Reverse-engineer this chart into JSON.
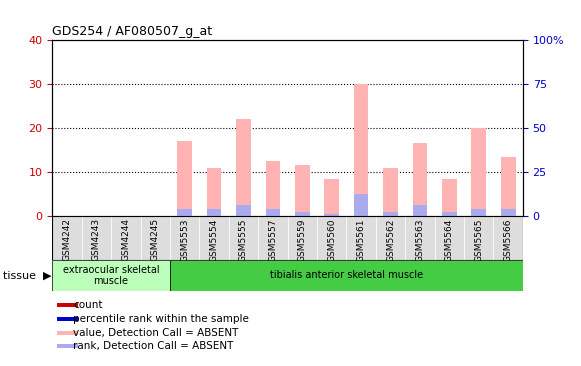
{
  "title": "GDS254 / AF080507_g_at",
  "samples": [
    "GSM4242",
    "GSM4243",
    "GSM4244",
    "GSM4245",
    "GSM5553",
    "GSM5554",
    "GSM5555",
    "GSM5557",
    "GSM5559",
    "GSM5560",
    "GSM5561",
    "GSM5562",
    "GSM5563",
    "GSM5564",
    "GSM5565",
    "GSM5566"
  ],
  "value_absent": [
    0,
    0,
    0,
    0,
    17.0,
    11.0,
    22.0,
    12.5,
    11.5,
    8.5,
    30.0,
    11.0,
    16.5,
    8.5,
    20.0,
    13.5
  ],
  "rank_absent": [
    0,
    0,
    0,
    0,
    1.5,
    1.5,
    2.5,
    1.5,
    1.0,
    0.5,
    5.0,
    1.0,
    2.5,
    1.0,
    1.5,
    1.5
  ],
  "ylim_left": [
    0,
    40
  ],
  "ylim_right": [
    0,
    100
  ],
  "yticks_left": [
    0,
    10,
    20,
    30,
    40
  ],
  "yticks_right": [
    0,
    25,
    50,
    75,
    100
  ],
  "tissue_groups": [
    {
      "label": "extraocular skeletal\nmuscle",
      "start": 0,
      "end": 4
    },
    {
      "label": "tibialis anterior skeletal muscle",
      "start": 4,
      "end": 16
    }
  ],
  "tissue_colors": [
    "#bbffbb",
    "#44cc44"
  ],
  "bar_color_absent": "#ffb3b3",
  "rank_color_absent": "#aaaaee",
  "legend_items": [
    {
      "color": "#cc0000",
      "label": "count"
    },
    {
      "color": "#0000cc",
      "label": "percentile rank within the sample"
    },
    {
      "color": "#ffb3b3",
      "label": "value, Detection Call = ABSENT"
    },
    {
      "color": "#aaaaee",
      "label": "rank, Detection Call = ABSENT"
    }
  ],
  "bg_color": "#ffffff",
  "left_tick_color": "#cc0000",
  "right_tick_color": "#0000cc",
  "xticklabel_bg": "#dddddd"
}
